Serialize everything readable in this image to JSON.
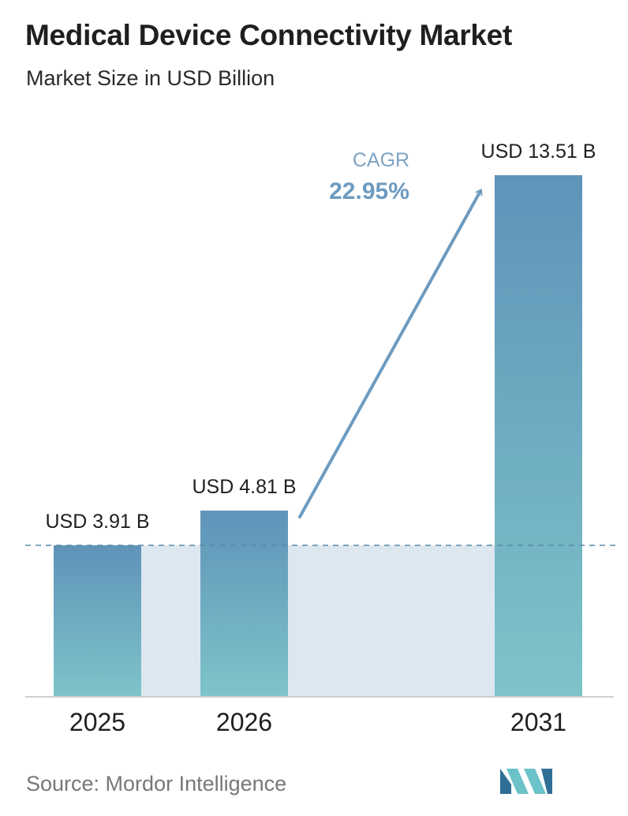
{
  "header": {
    "title": "Medical Device Connectivity Market",
    "subtitle": "Market Size in USD Billion"
  },
  "footer": {
    "source": "Source:  Mordor Intelligence"
  },
  "logo": {
    "icon": "mordor-intelligence-logo-icon"
  },
  "colors": {
    "bar_top": "#5f93b9",
    "bar_bottom": "#7ec4c9",
    "band": "#dde7f0",
    "arrow": "#6d9bc0",
    "cagr_label": "#7fa3c2",
    "cagr_value": "#6d9bc0",
    "baseline_dash": "#5c8aa8",
    "axis": "#cfcfcf",
    "logo_dark": "#2f6f96",
    "logo_light": "#6bc3c9"
  },
  "chart_data": {
    "type": "bar",
    "categories": [
      "2025",
      "2026",
      "2031"
    ],
    "values": [
      3.91,
      4.81,
      13.51
    ],
    "value_labels": [
      "USD 3.91 B",
      "USD 4.81 B",
      "USD 13.51 B"
    ],
    "ylim": [
      0,
      13.51
    ],
    "grid": false,
    "legend": "none",
    "annotation": {
      "label": "CAGR",
      "value": "22.95%"
    }
  }
}
